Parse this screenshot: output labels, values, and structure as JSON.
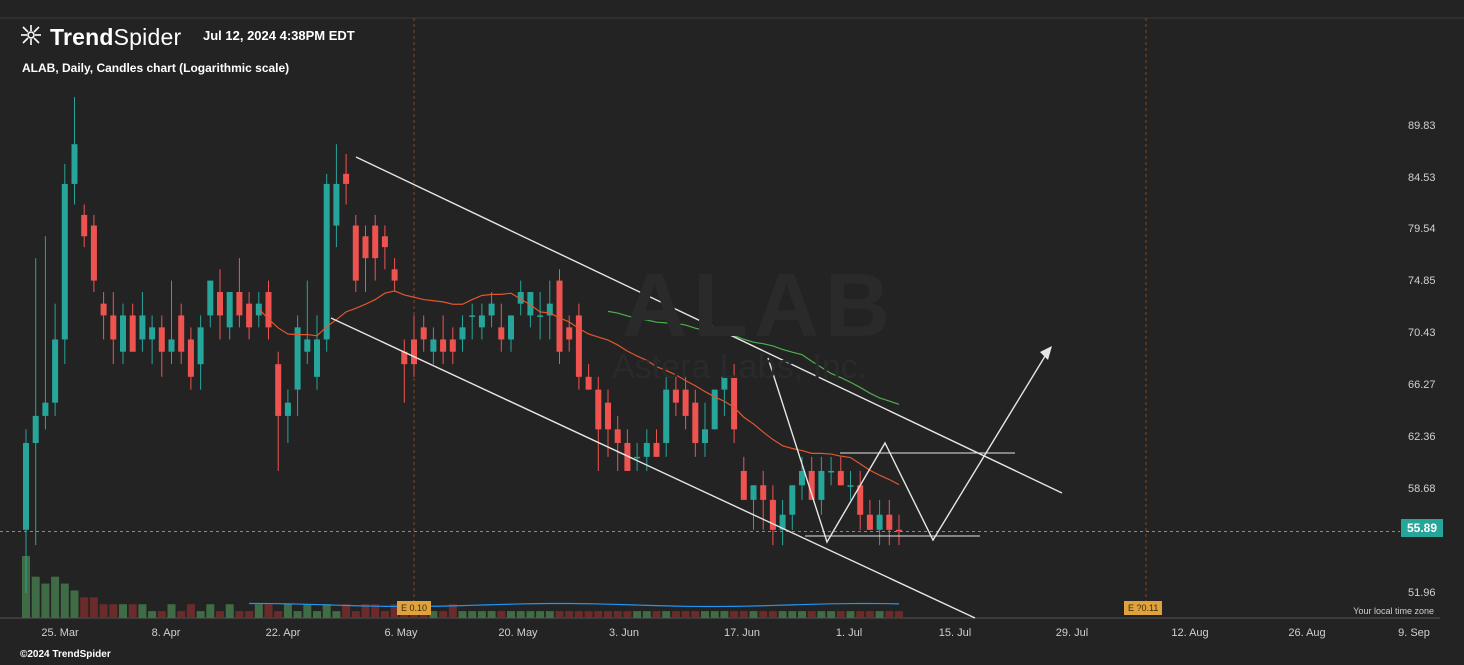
{
  "header": {
    "logo_text_bold": "Trend",
    "logo_text_light": "Spider",
    "timestamp": "Jul 12, 2024 4:38PM EDT",
    "subtitle": "ALAB, Daily, Candles chart (Logarithmic scale)"
  },
  "footer": {
    "copyright": "©2024 TrendSpider",
    "local_time_zone": "Your local time zone"
  },
  "last_price": "55.89",
  "earnings_badges": [
    {
      "label": "E 0.10"
    },
    {
      "label": "E ?0.11"
    }
  ],
  "colors": {
    "background": "#232323",
    "up": "#26a69a",
    "down": "#ef5350",
    "ma_short": "#e0562f",
    "ma_long": "#4caf50",
    "volume_ma": "#2196f3",
    "pattern_lines": "#e6e6e6"
  },
  "chart_data": {
    "type": "candlestick",
    "symbol": "ALAB",
    "interval": "Daily",
    "scale": "log",
    "y_ticks": [
      "89.83",
      "84.53",
      "79.54",
      "74.85",
      "70.43",
      "66.27",
      "62.36",
      "58.68",
      "51.96"
    ],
    "x_ticks": [
      "25. Mar",
      "8. Apr",
      "22. Apr",
      "6. May",
      "20. May",
      "3. Jun",
      "17. Jun",
      "1. Jul",
      "15. Jul",
      "29. Jul",
      "12. Aug",
      "26. Aug",
      "9. Sep"
    ],
    "ylim": [
      50.5,
      96
    ],
    "candles": [
      {
        "o": 56,
        "h": 63,
        "l": 52,
        "c": 62
      },
      {
        "o": 62,
        "h": 77,
        "l": 55,
        "c": 64
      },
      {
        "o": 64,
        "h": 79,
        "l": 63,
        "c": 65
      },
      {
        "o": 65,
        "h": 73,
        "l": 64,
        "c": 70
      },
      {
        "o": 70,
        "h": 86,
        "l": 68,
        "c": 84
      },
      {
        "o": 84,
        "h": 93,
        "l": 82,
        "c": 88
      },
      {
        "o": 81,
        "h": 82,
        "l": 78,
        "c": 79
      },
      {
        "o": 80,
        "h": 81,
        "l": 74,
        "c": 75
      },
      {
        "o": 73,
        "h": 74,
        "l": 70,
        "c": 72
      },
      {
        "o": 72,
        "h": 74,
        "l": 68,
        "c": 70
      },
      {
        "o": 69,
        "h": 73,
        "l": 68,
        "c": 72
      },
      {
        "o": 72,
        "h": 73,
        "l": 69,
        "c": 69
      },
      {
        "o": 70,
        "h": 74,
        "l": 69,
        "c": 72
      },
      {
        "o": 70,
        "h": 72,
        "l": 68,
        "c": 71
      },
      {
        "o": 71,
        "h": 72,
        "l": 67,
        "c": 69
      },
      {
        "o": 69,
        "h": 75,
        "l": 68,
        "c": 70
      },
      {
        "o": 72,
        "h": 73,
        "l": 68,
        "c": 69
      },
      {
        "o": 70,
        "h": 71,
        "l": 66,
        "c": 67
      },
      {
        "o": 68,
        "h": 72,
        "l": 66,
        "c": 71
      },
      {
        "o": 72,
        "h": 75,
        "l": 71,
        "c": 75
      },
      {
        "o": 74,
        "h": 76,
        "l": 70,
        "c": 72
      },
      {
        "o": 71,
        "h": 74,
        "l": 70,
        "c": 74
      },
      {
        "o": 74,
        "h": 77,
        "l": 71,
        "c": 72
      },
      {
        "o": 73,
        "h": 74,
        "l": 70,
        "c": 71
      },
      {
        "o": 72,
        "h": 74,
        "l": 71,
        "c": 73
      },
      {
        "o": 74,
        "h": 75,
        "l": 70,
        "c": 71
      },
      {
        "o": 68,
        "h": 69,
        "l": 60,
        "c": 64
      },
      {
        "o": 64,
        "h": 66,
        "l": 62,
        "c": 65
      },
      {
        "o": 66,
        "h": 72,
        "l": 64,
        "c": 71
      },
      {
        "o": 69,
        "h": 75,
        "l": 68,
        "c": 70
      },
      {
        "o": 67,
        "h": 72,
        "l": 66,
        "c": 70
      },
      {
        "o": 70,
        "h": 85,
        "l": 69,
        "c": 84
      },
      {
        "o": 80,
        "h": 88,
        "l": 78,
        "c": 84
      },
      {
        "o": 85,
        "h": 87,
        "l": 82,
        "c": 84
      },
      {
        "o": 80,
        "h": 81,
        "l": 74,
        "c": 75
      },
      {
        "o": 79,
        "h": 80,
        "l": 74,
        "c": 77
      },
      {
        "o": 80,
        "h": 81,
        "l": 75,
        "c": 77
      },
      {
        "o": 79,
        "h": 80,
        "l": 76,
        "c": 78
      },
      {
        "o": 76,
        "h": 77,
        "l": 74,
        "c": 75
      },
      {
        "o": 69,
        "h": 70,
        "l": 65,
        "c": 68
      },
      {
        "o": 70,
        "h": 72,
        "l": 67,
        "c": 68
      },
      {
        "o": 71,
        "h": 72,
        "l": 69,
        "c": 70
      },
      {
        "o": 69,
        "h": 71,
        "l": 68,
        "c": 70
      },
      {
        "o": 70,
        "h": 72,
        "l": 68,
        "c": 69
      },
      {
        "o": 70,
        "h": 71,
        "l": 68,
        "c": 69
      },
      {
        "o": 70,
        "h": 72,
        "l": 69,
        "c": 71
      },
      {
        "o": 72,
        "h": 73,
        "l": 70,
        "c": 72
      },
      {
        "o": 71,
        "h": 73,
        "l": 70,
        "c": 72
      },
      {
        "o": 72,
        "h": 74,
        "l": 71,
        "c": 73
      },
      {
        "o": 71,
        "h": 73,
        "l": 69,
        "c": 70
      },
      {
        "o": 70,
        "h": 72,
        "l": 69,
        "c": 72
      },
      {
        "o": 73,
        "h": 75,
        "l": 72,
        "c": 74
      },
      {
        "o": 72,
        "h": 74,
        "l": 71,
        "c": 74
      },
      {
        "o": 72,
        "h": 74,
        "l": 70,
        "c": 72
      },
      {
        "o": 72,
        "h": 75,
        "l": 70,
        "c": 73
      },
      {
        "o": 75,
        "h": 76,
        "l": 68,
        "c": 69
      },
      {
        "o": 71,
        "h": 72,
        "l": 69,
        "c": 70
      },
      {
        "o": 72,
        "h": 73,
        "l": 66,
        "c": 67
      },
      {
        "o": 67,
        "h": 68,
        "l": 66,
        "c": 66
      },
      {
        "o": 66,
        "h": 67,
        "l": 60,
        "c": 63
      },
      {
        "o": 65,
        "h": 66,
        "l": 61,
        "c": 63
      },
      {
        "o": 63,
        "h": 64,
        "l": 60,
        "c": 62
      },
      {
        "o": 62,
        "h": 63,
        "l": 60,
        "c": 60
      },
      {
        "o": 61,
        "h": 62,
        "l": 60,
        "c": 61
      },
      {
        "o": 61,
        "h": 63,
        "l": 60,
        "c": 62
      },
      {
        "o": 62,
        "h": 63,
        "l": 61,
        "c": 61
      },
      {
        "o": 62,
        "h": 67,
        "l": 61,
        "c": 66
      },
      {
        "o": 66,
        "h": 67,
        "l": 64,
        "c": 65
      },
      {
        "o": 66,
        "h": 67,
        "l": 63,
        "c": 64
      },
      {
        "o": 65,
        "h": 66,
        "l": 61,
        "c": 62
      },
      {
        "o": 62,
        "h": 65,
        "l": 61,
        "c": 63
      },
      {
        "o": 63,
        "h": 66,
        "l": 63,
        "c": 66
      },
      {
        "o": 66,
        "h": 68,
        "l": 64,
        "c": 67
      },
      {
        "o": 67,
        "h": 68,
        "l": 62,
        "c": 63
      },
      {
        "o": 60,
        "h": 61,
        "l": 58,
        "c": 58
      },
      {
        "o": 58,
        "h": 59,
        "l": 56,
        "c": 59
      },
      {
        "o": 59,
        "h": 60,
        "l": 56,
        "c": 58
      },
      {
        "o": 58,
        "h": 59,
        "l": 55,
        "c": 56
      },
      {
        "o": 56,
        "h": 58,
        "l": 55,
        "c": 57
      },
      {
        "o": 57,
        "h": 59,
        "l": 56,
        "c": 59
      },
      {
        "o": 59,
        "h": 61,
        "l": 58,
        "c": 60
      },
      {
        "o": 60,
        "h": 61,
        "l": 58,
        "c": 58
      },
      {
        "o": 58,
        "h": 61,
        "l": 57,
        "c": 60
      },
      {
        "o": 60,
        "h": 61,
        "l": 59,
        "c": 60
      },
      {
        "o": 60,
        "h": 61,
        "l": 59,
        "c": 59
      },
      {
        "o": 59,
        "h": 60,
        "l": 58,
        "c": 59
      },
      {
        "o": 59,
        "h": 60,
        "l": 56,
        "c": 57
      },
      {
        "o": 57,
        "h": 58,
        "l": 56,
        "c": 56
      },
      {
        "o": 56,
        "h": 58,
        "l": 55,
        "c": 57
      },
      {
        "o": 57,
        "h": 58,
        "l": 55,
        "c": 56
      },
      {
        "o": 56,
        "h": 57,
        "l": 55,
        "c": 55.89
      }
    ],
    "volume": [
      9,
      6,
      5,
      6,
      5,
      4,
      3,
      3,
      2,
      2,
      2,
      2,
      2,
      1,
      1,
      2,
      1,
      2,
      1,
      2,
      1,
      2,
      1,
      1,
      2,
      2,
      1,
      2,
      1,
      2,
      1,
      2,
      1,
      2,
      1,
      2,
      2,
      1,
      2,
      1,
      2,
      1,
      1,
      1,
      2,
      1,
      1,
      1,
      1,
      1,
      1,
      1,
      1,
      1,
      1,
      1,
      1,
      1,
      1,
      1,
      1,
      1,
      1,
      1,
      1,
      1,
      1,
      1,
      1,
      1,
      1,
      1,
      1,
      1,
      1,
      1,
      1,
      1,
      1,
      1,
      1,
      1,
      1,
      1,
      1,
      1,
      1,
      1,
      1,
      1,
      1
    ],
    "pattern_labels": []
  }
}
